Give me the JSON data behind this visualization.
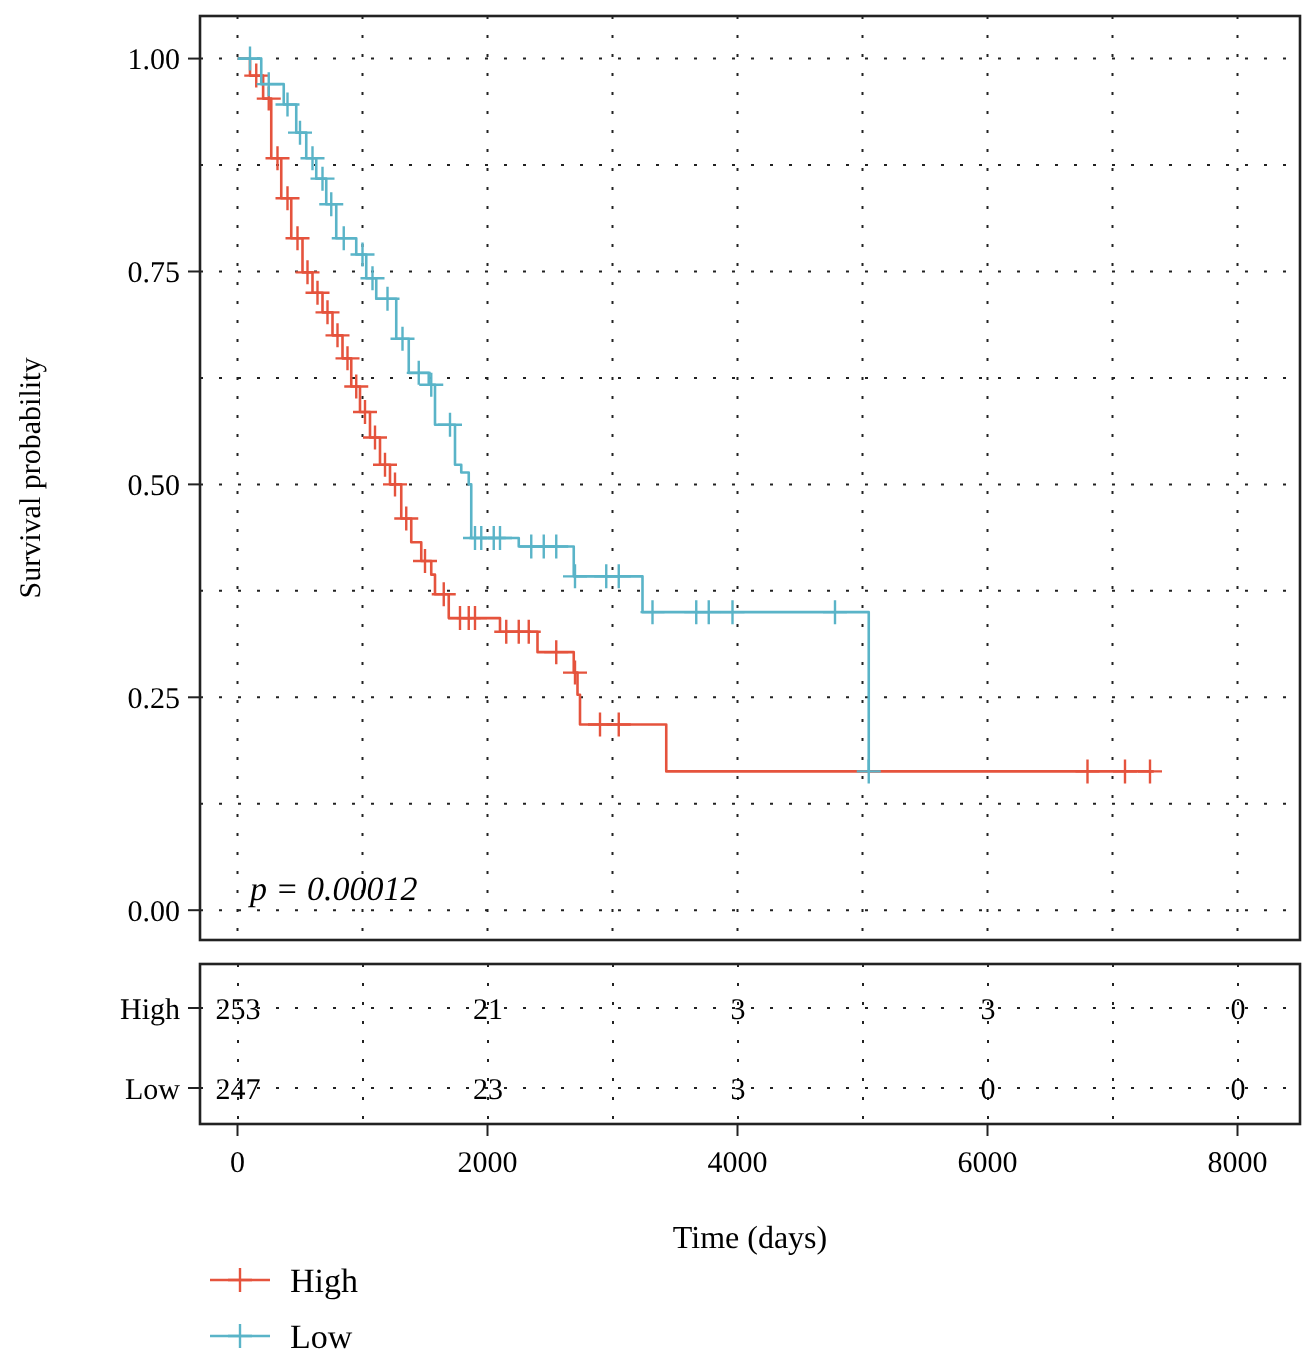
{
  "chart_data": [
    {
      "type": "step",
      "ylabel": "Survival probability",
      "xlim": [
        -300,
        8500
      ],
      "ylim": [
        -0.035,
        1.05
      ],
      "xlabel": "Time (days)",
      "xticks": [
        0,
        {
          "value": 1000,
          "label": null
        },
        2000,
        {
          "value": 3000,
          "label": null
        },
        4000,
        {
          "value": 5000,
          "label": null
        },
        6000,
        {
          "value": 7000,
          "label": null
        },
        8000
      ],
      "yticks": [
        {
          "value": 0,
          "label": "0.00"
        },
        {
          "value": 0.125,
          "label": null
        },
        {
          "value": 0.25,
          "label": "0.25"
        },
        {
          "value": 0.375,
          "label": null
        },
        {
          "value": 0.5,
          "label": "0.50"
        },
        {
          "value": 0.625,
          "label": null
        },
        {
          "value": 0.75,
          "label": "0.75"
        },
        {
          "value": 0.875,
          "label": null
        },
        {
          "value": 1,
          "label": "1.00"
        }
      ],
      "grid": true,
      "legend": "bottom",
      "line_style": "solid",
      "annotations": [
        "p = 0.00012"
      ],
      "series": [
        {
          "name": "High",
          "type": "step",
          "color": "#e5533d",
          "marker": "none",
          "x": [
            0,
            100,
            205,
            270,
            350,
            430,
            520,
            600,
            680,
            760,
            840,
            910,
            980,
            1060,
            1140,
            1220,
            1310,
            1390,
            1470,
            1550,
            1580,
            1690,
            2100,
            2400,
            2690,
            2720,
            2740,
            3430,
            7330
          ],
          "values": [
            1,
            0.98,
            0.953,
            0.883,
            0.836,
            0.789,
            0.749,
            0.725,
            0.702,
            0.675,
            0.648,
            0.615,
            0.585,
            0.555,
            0.523,
            0.5,
            0.46,
            0.432,
            0.41,
            0.394,
            0.371,
            0.343,
            0.327,
            0.303,
            0.279,
            0.253,
            0.218,
            0.163,
            0.163
          ]
        },
        {
          "type": "scatter",
          "color": "#e5533d",
          "marker": "cross",
          "x": [
            150,
            250,
            320,
            400,
            480,
            560,
            640,
            720,
            800,
            880,
            950,
            1020,
            1100,
            1180,
            1260,
            1350,
            1500,
            1650,
            1780,
            1850,
            1900,
            2150,
            2250,
            2330,
            2550,
            2700,
            2900,
            3050,
            6800,
            7100,
            7300
          ],
          "values": [
            0.98,
            0.953,
            0.883,
            0.836,
            0.789,
            0.749,
            0.725,
            0.702,
            0.675,
            0.648,
            0.615,
            0.585,
            0.555,
            0.523,
            0.5,
            0.46,
            0.41,
            0.371,
            0.343,
            0.343,
            0.343,
            0.327,
            0.327,
            0.327,
            0.303,
            0.279,
            0.218,
            0.218,
            0.163,
            0.163,
            0.163
          ]
        },
        {
          "name": "Low",
          "type": "step",
          "color": "#5ab4c8",
          "marker": "none",
          "x": [
            0,
            190,
            370,
            470,
            550,
            630,
            710,
            790,
            950,
            1030,
            1110,
            1270,
            1370,
            1530,
            1580,
            1740,
            1790,
            1850,
            1870,
            2250,
            2690,
            3240,
            5050
          ],
          "values": [
            1,
            0.97,
            0.946,
            0.913,
            0.883,
            0.859,
            0.829,
            0.789,
            0.77,
            0.742,
            0.718,
            0.671,
            0.631,
            0.617,
            0.57,
            0.523,
            0.514,
            0.5,
            0.437,
            0.427,
            0.392,
            0.35,
            0.163
          ]
        },
        {
          "type": "scatter",
          "color": "#5ab4c8",
          "marker": "cross",
          "x": [
            100,
            250,
            400,
            500,
            600,
            680,
            750,
            850,
            1000,
            1080,
            1200,
            1320,
            1450,
            1550,
            1700,
            1900,
            1950,
            2050,
            2100,
            2350,
            2450,
            2550,
            2700,
            2950,
            3050,
            3320,
            3670,
            3770,
            3960,
            4780,
            5050
          ],
          "values": [
            1,
            0.97,
            0.946,
            0.913,
            0.883,
            0.859,
            0.829,
            0.789,
            0.77,
            0.742,
            0.718,
            0.671,
            0.631,
            0.617,
            0.57,
            0.437,
            0.437,
            0.437,
            0.437,
            0.427,
            0.427,
            0.427,
            0.392,
            0.392,
            0.392,
            0.35,
            0.35,
            0.35,
            0.35,
            0.35,
            0.163
          ]
        }
      ]
    },
    {
      "type": "heatmap",
      "grid": true,
      "data_labels": true,
      "categories": [
        null,
        null,
        null,
        null,
        null
      ],
      "y_categories": [
        "High",
        "Low"
      ],
      "cells": [
        [
          253,
          21,
          3,
          3,
          0
        ],
        [
          247,
          23,
          3,
          0,
          0
        ]
      ]
    }
  ]
}
